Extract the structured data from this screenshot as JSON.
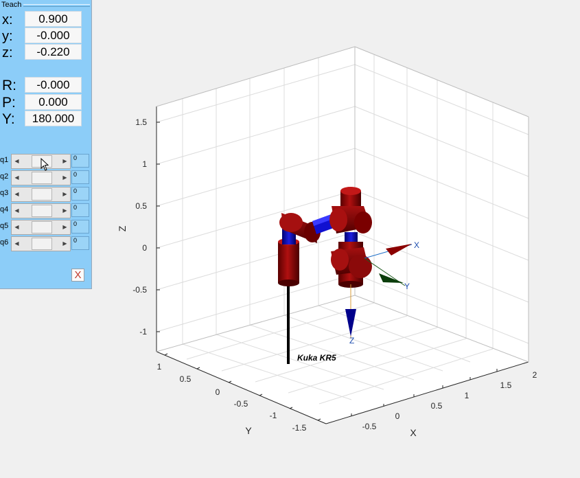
{
  "teach": {
    "title": "Teach",
    "pose": [
      {
        "label": "x:",
        "value": "0.900"
      },
      {
        "label": "y:",
        "value": "-0.000"
      },
      {
        "label": "z:",
        "value": "-0.220"
      },
      {
        "label": "R:",
        "value": "-0.000"
      },
      {
        "label": "P:",
        "value": "0.000"
      },
      {
        "label": "Y:",
        "value": "180.000"
      }
    ],
    "joints": [
      {
        "label": "q1",
        "value": "0"
      },
      {
        "label": "q2",
        "value": "0"
      },
      {
        "label": "q3",
        "value": "0"
      },
      {
        "label": "q4",
        "value": "0"
      },
      {
        "label": "q5",
        "value": "0"
      },
      {
        "label": "q6",
        "value": "0"
      },
      {
        "label": "",
        "value": "",
        "note": "spacer"
      }
    ],
    "close_label": "X"
  },
  "plot": {
    "z_label": "Z",
    "x_label": "X",
    "y_label": "Y",
    "z_ticks": [
      "1.5",
      "1",
      "0.5",
      "0",
      "-0.5",
      "-1"
    ],
    "x_ticks": [
      "-0.5",
      "0",
      "0.5",
      "1",
      "1.5",
      "2"
    ],
    "y_ticks": [
      "1",
      "0.5",
      "0",
      "-0.5",
      "-1",
      "-1.5"
    ],
    "robot_name": "Kuka KR5",
    "tool_axes": [
      "X",
      "Y",
      "Z"
    ]
  },
  "colors": {
    "panel": "#8ccdf8",
    "link": "#8b0000",
    "joint": "#0000c0",
    "frame_x": "#1f6fc8",
    "frame_y": "#1e5a1e",
    "frame_z": "#00008b"
  }
}
